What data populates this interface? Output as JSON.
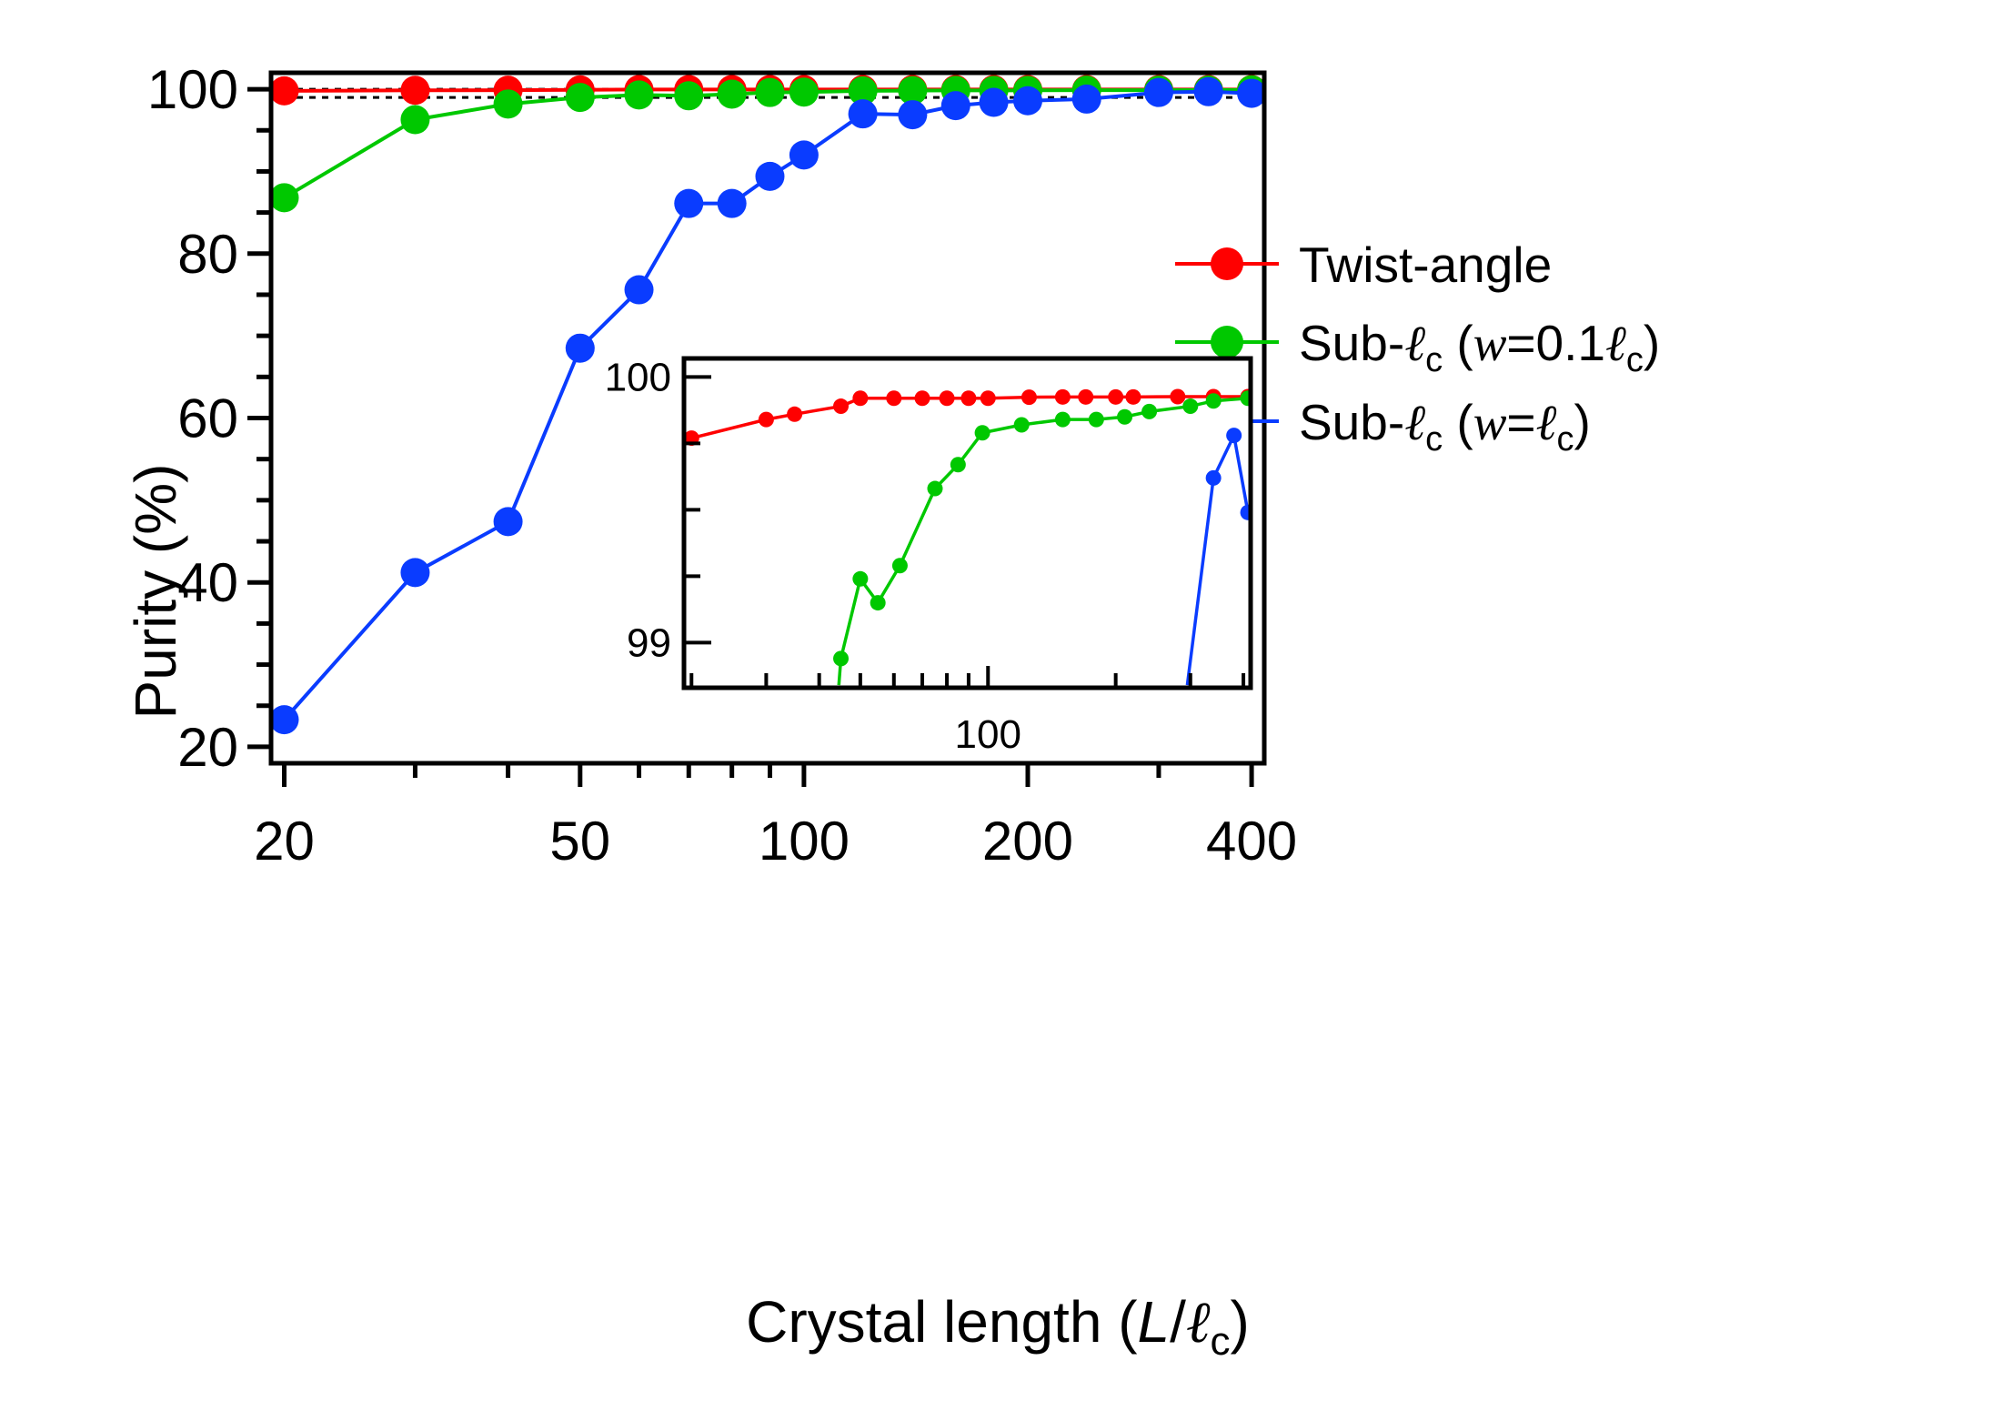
{
  "colors": {
    "red": "#ff0000",
    "green": "#00c800",
    "blue": "#0a3cff",
    "axis": "#000000"
  },
  "chart_data": [
    {
      "type": "line",
      "xscale": "log",
      "xlabel": "Crystal length (L/ℓc)",
      "xlabel_parts": {
        "prefix": "Crystal length (",
        "L": "L",
        "slash": "/",
        "ell": "ℓ",
        "sub": "c",
        "suffix": ")"
      },
      "ylabel": "Purity (%)",
      "xlim": [
        19.2,
        416
      ],
      "ylim": [
        18,
        102
      ],
      "xticks": [
        20,
        50,
        100,
        200,
        400
      ],
      "xtick_labels": [
        "20",
        "50",
        "100",
        "200",
        "400"
      ],
      "yticks": [
        20,
        40,
        60,
        80,
        100
      ],
      "ytick_labels": [
        "20",
        "40",
        "60",
        "80",
        "100"
      ],
      "reference_lines": [
        100,
        99
      ],
      "legend_position": "upper-right",
      "series": [
        {
          "name": "Twist-angle",
          "color": "red",
          "x": [
            20,
            30,
            40,
            50,
            60,
            70,
            80,
            90,
            100,
            120,
            140,
            160,
            180,
            200,
            240,
            300,
            350,
            400
          ],
          "y": [
            99.8,
            99.87,
            99.88,
            99.92,
            99.96,
            99.96,
            99.96,
            99.96,
            99.96,
            99.96,
            99.96,
            99.96,
            99.96,
            99.96,
            99.96,
            99.96,
            99.96,
            99.96
          ]
        },
        {
          "name": "Sub-ℓc (w=0.1ℓc)",
          "name_parts": {
            "prefix": "Sub-",
            "ell": "ℓ",
            "sub": "c",
            "open": " (",
            "w": "w",
            "eq": "=0.1",
            "ell2": "ℓ",
            "sub2": "c",
            "close": ")"
          },
          "color": "green",
          "x": [
            20,
            30,
            40,
            50,
            60,
            70,
            80,
            90,
            100,
            120,
            140,
            160,
            180,
            200,
            240,
            300,
            350,
            400
          ],
          "y": [
            86.8,
            96.3,
            98.2,
            99.0,
            99.3,
            99.2,
            99.4,
            99.6,
            99.65,
            99.8,
            99.83,
            99.85,
            99.85,
            99.86,
            99.88,
            99.89,
            99.9,
            99.93
          ]
        },
        {
          "name": "Sub-ℓc (w=ℓc)",
          "name_parts": {
            "prefix": "Sub-",
            "ell": "ℓ",
            "sub": "c",
            "open": " (",
            "w": "w",
            "eq": "=",
            "ell2": "ℓ",
            "sub2": "c",
            "close": ")"
          },
          "color": "blue",
          "x": [
            20,
            30,
            40,
            50,
            60,
            70,
            80,
            90,
            100,
            120,
            140,
            160,
            180,
            200,
            240,
            300,
            350,
            400
          ],
          "y": [
            23.3,
            41.2,
            47.4,
            68.5,
            75.6,
            86.1,
            86.1,
            89.4,
            92.0,
            97.0,
            96.9,
            98.0,
            98.4,
            98.6,
            98.8,
            99.6,
            99.7,
            99.5
          ]
        }
      ]
    },
    {
      "type": "line",
      "role": "inset",
      "xscale": "log",
      "xlim": [
        19.2,
        416
      ],
      "ylim": [
        98.83,
        100.07
      ],
      "xticks": [
        20,
        30,
        40,
        50,
        60,
        70,
        80,
        90,
        100,
        200,
        300,
        400
      ],
      "xtick_labels": [
        "",
        "",
        "",
        "",
        "",
        "",
        "",
        "",
        "100",
        "",
        "",
        ""
      ],
      "yticks": [
        99,
        99.25,
        99.5,
        99.75,
        100
      ],
      "ytick_labels": [
        "99",
        "",
        "",
        "",
        "100"
      ],
      "series": [
        {
          "color": "red",
          "x": [
            20,
            30,
            35,
            45,
            50,
            60,
            70,
            80,
            90,
            100,
            125,
            150,
            170,
            200,
            220,
            280,
            340,
            410
          ],
          "y": [
            99.77,
            99.84,
            99.86,
            99.89,
            99.92,
            99.92,
            99.92,
            99.92,
            99.92,
            99.92,
            99.924,
            99.925,
            99.925,
            99.925,
            99.925,
            99.926,
            99.926,
            99.926
          ]
        },
        {
          "color": "green",
          "x": [
            44.5,
            45,
            50,
            55,
            62,
            75,
            85,
            97,
            120,
            150,
            180,
            210,
            240,
            300,
            340,
            410
          ],
          "y": [
            98.84,
            98.94,
            99.24,
            99.15,
            99.29,
            99.58,
            99.67,
            99.79,
            99.82,
            99.84,
            99.84,
            99.85,
            99.87,
            99.89,
            99.91,
            99.92
          ]
        },
        {
          "color": "blue",
          "x": [
            295,
            340,
            380,
            410
          ],
          "y": [
            98.84,
            99.62,
            99.78,
            99.49
          ]
        }
      ]
    }
  ]
}
